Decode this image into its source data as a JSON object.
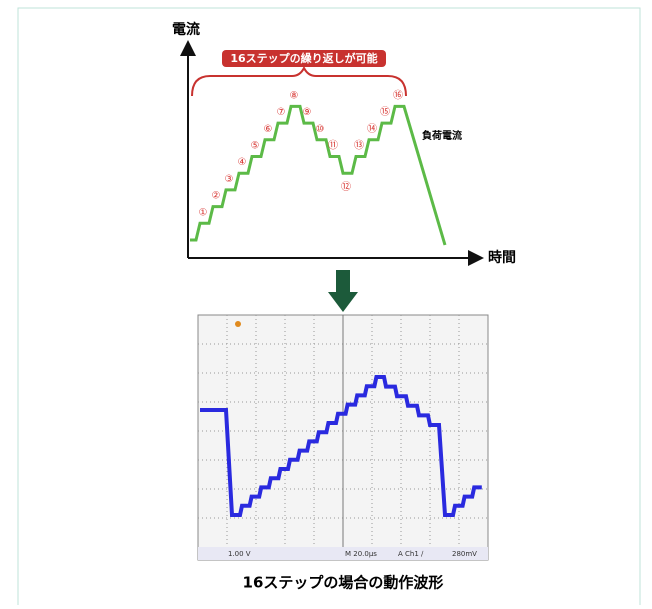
{
  "diagram": {
    "y_axis_label": "電流",
    "x_axis_label": "時間",
    "banner": "16ステップの繰り返しが可能",
    "load_label": "負荷電流",
    "step_labels": [
      "①",
      "②",
      "③",
      "④",
      "⑤",
      "⑥",
      "⑦",
      "⑧",
      "⑨",
      "⑩",
      "⑪",
      "⑫",
      "⑬",
      "⑭",
      "⑮",
      "⑯"
    ]
  },
  "scope": {
    "ch_scale": "1.00 V",
    "timebase": "M 20.0µs",
    "trigger": "A Ch1 ∕",
    "level": "280mV"
  },
  "caption": "16ステップの場合の動作波形"
}
